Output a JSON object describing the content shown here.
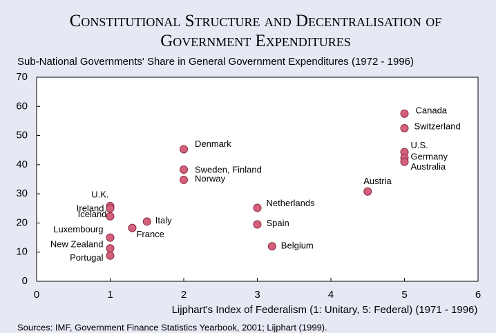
{
  "chart_data": {
    "type": "scatter",
    "title": "Constitutional Structure and Decentralisation of Government Expenditures",
    "ylabel": "Sub-National Governments' Share in General Government Expenditures (1972 - 1996)",
    "xlabel": "Lijphart's Index of Federalism (1: Unitary, 5: Federal) (1971 - 1996)",
    "source": "Sources: IMF, Government Finance Statistics Yearbook, 2001; Lijphart (1999).",
    "color": "#d4607c",
    "xlim": [
      0,
      6
    ],
    "xticks": [
      0,
      1,
      2,
      3,
      4,
      5,
      6
    ],
    "ylim": [
      0,
      70
    ],
    "yticks": [
      0,
      10,
      20,
      30,
      40,
      50,
      60,
      70
    ],
    "labels": [
      "Canada",
      "Switzerland",
      "U.S.",
      "Germany",
      "Australia",
      "Austria",
      "Denmark",
      "Sweden, Finland",
      "Norway",
      "Netherlands",
      "Spain",
      "Belgium",
      "Italy",
      "France",
      "U.K.",
      "Ireland",
      "Iceland",
      "Luxembourg",
      "New Zealand",
      "Portugal"
    ],
    "x": [
      5,
      5,
      5,
      5,
      5,
      4.5,
      2,
      2,
      2,
      3,
      3,
      3.2,
      1.5,
      1.3,
      1,
      1,
      1,
      1,
      1,
      1
    ],
    "values": [
      57.5,
      52.5,
      44.3,
      42.3,
      41,
      30.8,
      45.3,
      38.3,
      34.8,
      25.2,
      19.5,
      12,
      20.5,
      18.3,
      25.8,
      25,
      22.3,
      15,
      11.3,
      8.8
    ]
  }
}
